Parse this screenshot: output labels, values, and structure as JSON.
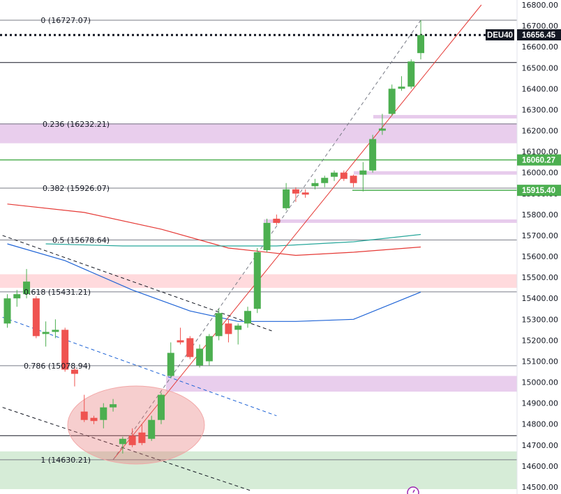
{
  "chart_data": {
    "type": "candlestick",
    "symbol": "DEU40",
    "last_price": "16656.45",
    "y_axis": {
      "ylim": [
        14490,
        16810
      ],
      "ticks": [
        "16800.00",
        "16700.00",
        "16600.00",
        "16500.00",
        "16400.00",
        "16300.00",
        "16200.00",
        "16100.00",
        "16000.00",
        "15900.00",
        "15800.00",
        "15700.00",
        "15600.00",
        "15500.00",
        "15400.00",
        "15300.00",
        "15200.00",
        "15100.00",
        "15000.00",
        "14900.00",
        "14800.00",
        "14700.00",
        "14600.00",
        "14500.00"
      ]
    },
    "fibonacci": [
      {
        "label": "0 (16727.07)",
        "value": 16727.07
      },
      {
        "label": "0.236 (16232.21)",
        "value": 16232.21
      },
      {
        "label": "0.382 (15926.07)",
        "value": 15926.07
      },
      {
        "label": "0.5 (15678.64)",
        "value": 15678.64
      },
      {
        "label": "0.618 (15431.21)",
        "value": 15431.21
      },
      {
        "label": "0.786 (15078.94)",
        "value": 15078.94
      },
      {
        "label": "1 (14630.21)",
        "value": 14630.21
      }
    ],
    "horizontal_levels": [
      16525,
      14745
    ],
    "price_tags": [
      {
        "label": "16060.27",
        "value": 16060.27,
        "color": "#4caf50"
      },
      {
        "label": "15915.40",
        "value": 15915.4,
        "color": "#4caf50"
      }
    ],
    "zones": [
      {
        "from": 16140,
        "to": 16235,
        "color": "#e1bee7"
      },
      {
        "from": 15450,
        "to": 15515,
        "color": "#ffcdd2"
      },
      {
        "from": 14955,
        "to": 15030,
        "color": "#e1bee7"
      },
      {
        "from": 14490,
        "to": 14670,
        "color": "#c8e6c9"
      }
    ],
    "candles": [
      {
        "o": 15280,
        "h": 15420,
        "l": 15260,
        "c": 15400
      },
      {
        "o": 15400,
        "h": 15440,
        "l": 15360,
        "c": 15420
      },
      {
        "o": 15420,
        "h": 15540,
        "l": 15400,
        "c": 15480
      },
      {
        "o": 15400,
        "h": 15410,
        "l": 15210,
        "c": 15220
      },
      {
        "o": 15230,
        "h": 15290,
        "l": 15170,
        "c": 15240
      },
      {
        "o": 15240,
        "h": 15300,
        "l": 15210,
        "c": 15250
      },
      {
        "o": 15250,
        "h": 15260,
        "l": 15050,
        "c": 15060
      },
      {
        "o": 15060,
        "h": 15070,
        "l": 14980,
        "c": 15040
      },
      {
        "o": 14860,
        "h": 14940,
        "l": 14810,
        "c": 14820
      },
      {
        "o": 14830,
        "h": 14840,
        "l": 14800,
        "c": 14815
      },
      {
        "o": 14820,
        "h": 14900,
        "l": 14780,
        "c": 14880
      },
      {
        "o": 14880,
        "h": 14920,
        "l": 14860,
        "c": 14895
      },
      {
        "o": 14705,
        "h": 14740,
        "l": 14660,
        "c": 14730
      },
      {
        "o": 14745,
        "h": 14780,
        "l": 14690,
        "c": 14700
      },
      {
        "o": 14760,
        "h": 14800,
        "l": 14700,
        "c": 14710
      },
      {
        "o": 14730,
        "h": 14840,
        "l": 14720,
        "c": 14820
      },
      {
        "o": 14820,
        "h": 14950,
        "l": 14800,
        "c": 14940
      },
      {
        "o": 15030,
        "h": 15190,
        "l": 15020,
        "c": 15140
      },
      {
        "o": 15200,
        "h": 15260,
        "l": 15180,
        "c": 15190
      },
      {
        "o": 15210,
        "h": 15220,
        "l": 15110,
        "c": 15120
      },
      {
        "o": 15080,
        "h": 15180,
        "l": 15070,
        "c": 15160
      },
      {
        "o": 15100,
        "h": 15230,
        "l": 15080,
        "c": 15220
      },
      {
        "o": 15220,
        "h": 15350,
        "l": 15200,
        "c": 15330
      },
      {
        "o": 15280,
        "h": 15300,
        "l": 15190,
        "c": 15230
      },
      {
        "o": 15250,
        "h": 15280,
        "l": 15180,
        "c": 15270
      },
      {
        "o": 15280,
        "h": 15360,
        "l": 15260,
        "c": 15340
      },
      {
        "o": 15350,
        "h": 15640,
        "l": 15330,
        "c": 15620
      },
      {
        "o": 15630,
        "h": 15780,
        "l": 15620,
        "c": 15760
      },
      {
        "o": 15780,
        "h": 15800,
        "l": 15750,
        "c": 15760
      },
      {
        "o": 15830,
        "h": 15950,
        "l": 15820,
        "c": 15920
      },
      {
        "o": 15920,
        "h": 15930,
        "l": 15860,
        "c": 15900
      },
      {
        "o": 15905,
        "h": 15920,
        "l": 15880,
        "c": 15895
      },
      {
        "o": 15935,
        "h": 15970,
        "l": 15920,
        "c": 15950
      },
      {
        "o": 15950,
        "h": 15985,
        "l": 15930,
        "c": 15975
      },
      {
        "o": 15980,
        "h": 16010,
        "l": 15960,
        "c": 16000
      },
      {
        "o": 16000,
        "h": 16010,
        "l": 15960,
        "c": 15970
      },
      {
        "o": 15985,
        "h": 15990,
        "l": 15930,
        "c": 15950
      },
      {
        "o": 15990,
        "h": 16050,
        "l": 15910,
        "c": 16010
      },
      {
        "o": 16010,
        "h": 16180,
        "l": 16000,
        "c": 16160
      },
      {
        "o": 16200,
        "h": 16280,
        "l": 16180,
        "c": 16210
      },
      {
        "o": 16280,
        "h": 16420,
        "l": 16270,
        "c": 16400
      },
      {
        "o": 16400,
        "h": 16460,
        "l": 16390,
        "c": 16410
      },
      {
        "o": 16410,
        "h": 16540,
        "l": 16400,
        "c": 16530
      },
      {
        "o": 16570,
        "h": 16727,
        "l": 16540,
        "c": 16656
      }
    ],
    "moving_averages": [
      {
        "color": "#e53935",
        "points": [
          [
            0,
            15850
          ],
          [
            8,
            15810
          ],
          [
            16,
            15730
          ],
          [
            23,
            15640
          ],
          [
            30,
            15605
          ],
          [
            36,
            15620
          ],
          [
            43,
            15645
          ]
        ]
      },
      {
        "color": "#26a69a",
        "points": [
          [
            4,
            15660
          ],
          [
            12,
            15650
          ],
          [
            20,
            15650
          ],
          [
            28,
            15650
          ],
          [
            36,
            15670
          ],
          [
            43,
            15705
          ]
        ]
      },
      {
        "color": "#1e63d6",
        "points": [
          [
            0,
            15660
          ],
          [
            6,
            15580
          ],
          [
            13,
            15440
          ],
          [
            19,
            15340
          ],
          [
            24,
            15290
          ],
          [
            30,
            15290
          ],
          [
            36,
            15300
          ],
          [
            43,
            15430
          ]
        ]
      }
    ],
    "trend_lines": [
      {
        "style": "solid",
        "color": "#e53935",
        "from": [
          11.0,
          14630.21
        ],
        "to": [
          49.3,
          16800
        ]
      },
      {
        "style": "dashed",
        "color": "#787b86",
        "from": [
          11.0,
          14630.21
        ],
        "to": [
          43.0,
          16727.07
        ]
      },
      {
        "style": "dashed",
        "color": "#131722",
        "from": [
          -0.5,
          15700
        ],
        "to": [
          27.5,
          15245
        ]
      },
      {
        "style": "dashed",
        "color": "#131722",
        "from": [
          -0.5,
          14880
        ],
        "to": [
          25.5,
          14480
        ]
      },
      {
        "style": "dashed",
        "color": "#1e63d6",
        "from": [
          -0.5,
          15310
        ],
        "to": [
          28.0,
          14840
        ]
      }
    ]
  }
}
